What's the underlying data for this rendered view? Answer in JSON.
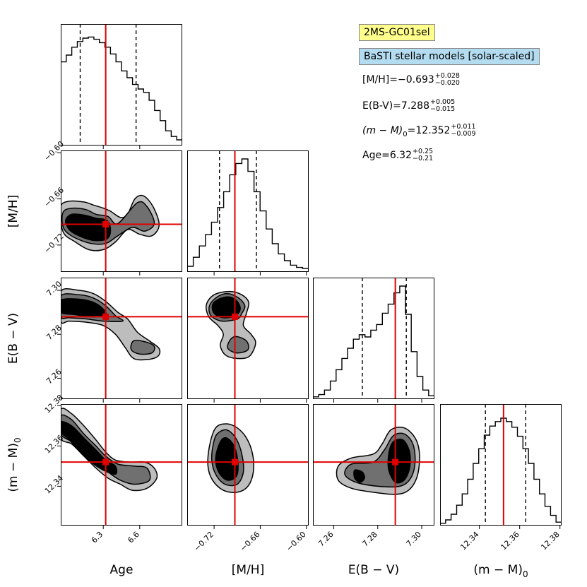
{
  "chart_data": {
    "type": "corner",
    "parameters": [
      {
        "key": "age",
        "label": "Age",
        "range": [
          5.95,
          6.95
        ],
        "ticks": [
          6.3,
          6.6
        ],
        "tick_labels": [
          "6.3",
          "6.6"
        ],
        "truth": 6.32,
        "quantiles": [
          6.11,
          6.57
        ]
      },
      {
        "key": "mh",
        "label": "[M/H]",
        "range": [
          -0.755,
          -0.597
        ],
        "ticks": [
          -0.72,
          -0.66,
          -0.6
        ],
        "tick_labels": [
          "−0.72",
          "−0.66",
          "−0.60"
        ],
        "truth": -0.693,
        "quantiles": [
          -0.713,
          -0.665
        ]
      },
      {
        "key": "ebv",
        "label": "E(B − V)",
        "range": [
          7.2505,
          7.3058
        ],
        "ticks": [
          7.26,
          7.28,
          7.3
        ],
        "tick_labels": [
          "7.26",
          "7.28",
          "7.30"
        ],
        "truth": 7.288,
        "quantiles": [
          7.273,
          7.293
        ]
      },
      {
        "key": "dm",
        "label": "(m − M)",
        "label_sub": "0",
        "range": [
          12.3205,
          12.3808
        ],
        "ticks": [
          12.34,
          12.36,
          12.38
        ],
        "tick_labels": [
          "12.34",
          "12.36",
          "12.38"
        ],
        "truth": 12.352,
        "quantiles": [
          12.343,
          12.363
        ]
      }
    ],
    "histograms": {
      "age": [
        0.74,
        0.8,
        0.87,
        0.92,
        0.95,
        0.96,
        0.94,
        0.91,
        0.87,
        0.81,
        0.74,
        0.66,
        0.6,
        0.54,
        0.5,
        0.47,
        0.4,
        0.31,
        0.22,
        0.13,
        0.08,
        0.05
      ],
      "mh": [
        0.05,
        0.13,
        0.23,
        0.33,
        0.44,
        0.57,
        0.71,
        0.86,
        0.96,
        1.0,
        0.89,
        0.71,
        0.54,
        0.38,
        0.25,
        0.16,
        0.1,
        0.06,
        0.04,
        0.03
      ],
      "ebv": [
        0.02,
        0.04,
        0.08,
        0.16,
        0.26,
        0.36,
        0.45,
        0.53,
        0.57,
        0.55,
        0.61,
        0.66,
        0.76,
        0.84,
        0.94,
        1.0,
        0.75,
        0.42,
        0.2,
        0.08,
        0.03
      ],
      "dm": [
        0.02,
        0.05,
        0.1,
        0.18,
        0.28,
        0.41,
        0.55,
        0.68,
        0.8,
        0.88,
        0.92,
        0.95,
        0.92,
        0.87,
        0.79,
        0.68,
        0.55,
        0.41,
        0.28,
        0.17,
        0.09,
        0.03
      ]
    },
    "contour_levels": [
      {
        "name": "outer",
        "color": "#bdbdbd"
      },
      {
        "name": "middle",
        "color": "#707070"
      },
      {
        "name": "inner",
        "color": "#000000"
      }
    ],
    "truth_color": "#e00000",
    "legend": {
      "field": "2MS-GC01sel",
      "field_bg": "#ffff8c",
      "models": "BaSTI stellar models [solar-scaled]",
      "models_bg": "#b4dcf0"
    },
    "results": [
      {
        "name": "[M/H]=",
        "value": "−0.693",
        "plus": "+0.028",
        "minus": "−0.020"
      },
      {
        "name": "E(B-V)=",
        "value": "7.288",
        "plus": "+0.005",
        "minus": "−0.015"
      },
      {
        "name": "(m − M)",
        "name_sub": "0",
        "name_tail": "=",
        "value": "12.352",
        "plus": "+0.011",
        "minus": "−0.009"
      },
      {
        "name": "Age=",
        "value": "6.32",
        "plus": "+0.25",
        "minus": "−0.21"
      }
    ]
  }
}
